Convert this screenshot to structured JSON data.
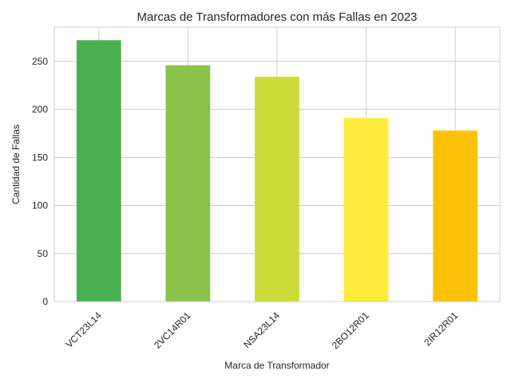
{
  "chart_data": {
    "type": "bar",
    "title": "Marcas de Transformadores con más Fallas en 2023",
    "xlabel": "Marca de Transformador",
    "ylabel": "Cantidad de Fallas",
    "categories": [
      "VCT23L14",
      "2VC14R01",
      "NSA23L14",
      "2BO12R01",
      "2IR12R01"
    ],
    "values": [
      272,
      246,
      234,
      191,
      178
    ],
    "colors": [
      "#4caf50",
      "#8bc34a",
      "#cddc39",
      "#ffeb3b",
      "#ffc107"
    ],
    "yticks": [
      0,
      50,
      100,
      150,
      200,
      250
    ],
    "ylim": [
      0,
      285.6
    ],
    "grid": true,
    "legend": "none"
  }
}
